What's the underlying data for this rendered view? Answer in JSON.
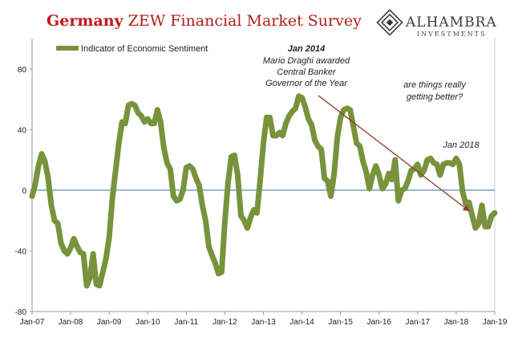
{
  "header": {
    "title_country": "Germany",
    "title_rest": " ZEW Financial Market Survey"
  },
  "logo": {
    "name": "ALHAMBRA",
    "sub": "INVESTMENTS"
  },
  "colors": {
    "series": "#77933c",
    "zero_line": "#2e6da4",
    "arrow": "#8b3a2a",
    "title": "#c41818"
  },
  "chart_data": {
    "type": "line",
    "title": "Germany ZEW Financial Market Survey",
    "xlabel": "",
    "ylabel": "",
    "ylim": [
      -80,
      100
    ],
    "yticks": [
      -80,
      -40,
      0,
      40,
      80
    ],
    "yticks_labels": [
      "-80",
      "-40",
      "0",
      "40",
      "80"
    ],
    "xlim": [
      "2007-01",
      "2019-01"
    ],
    "xticks": [
      "Jan-07",
      "Jan-08",
      "Jan-09",
      "Jan-10",
      "Jan-11",
      "Jan-12",
      "Jan-13",
      "Jan-14",
      "Jan-15",
      "Jan-16",
      "Jan-17",
      "Jan-18",
      "Jan-19"
    ],
    "grid": false,
    "legend_position": "top-left",
    "series": [
      {
        "name": "Indicator of Economic Sentiment",
        "x": [
          "2007-01",
          "2007-02",
          "2007-03",
          "2007-04",
          "2007-05",
          "2007-06",
          "2007-07",
          "2007-08",
          "2007-09",
          "2007-10",
          "2007-11",
          "2007-12",
          "2008-01",
          "2008-02",
          "2008-03",
          "2008-04",
          "2008-05",
          "2008-06",
          "2008-07",
          "2008-08",
          "2008-09",
          "2008-10",
          "2008-11",
          "2008-12",
          "2009-01",
          "2009-02",
          "2009-03",
          "2009-04",
          "2009-05",
          "2009-06",
          "2009-07",
          "2009-08",
          "2009-09",
          "2009-10",
          "2009-11",
          "2009-12",
          "2010-01",
          "2010-02",
          "2010-03",
          "2010-04",
          "2010-05",
          "2010-06",
          "2010-07",
          "2010-08",
          "2010-09",
          "2010-10",
          "2010-11",
          "2010-12",
          "2011-01",
          "2011-02",
          "2011-03",
          "2011-04",
          "2011-05",
          "2011-06",
          "2011-07",
          "2011-08",
          "2011-09",
          "2011-10",
          "2011-11",
          "2011-12",
          "2012-01",
          "2012-02",
          "2012-03",
          "2012-04",
          "2012-05",
          "2012-06",
          "2012-07",
          "2012-08",
          "2012-09",
          "2012-10",
          "2012-11",
          "2012-12",
          "2013-01",
          "2013-02",
          "2013-03",
          "2013-04",
          "2013-05",
          "2013-06",
          "2013-07",
          "2013-08",
          "2013-09",
          "2013-10",
          "2013-11",
          "2013-12",
          "2014-01",
          "2014-02",
          "2014-03",
          "2014-04",
          "2014-05",
          "2014-06",
          "2014-07",
          "2014-08",
          "2014-09",
          "2014-10",
          "2014-11",
          "2014-12",
          "2015-01",
          "2015-02",
          "2015-03",
          "2015-04",
          "2015-05",
          "2015-06",
          "2015-07",
          "2015-08",
          "2015-09",
          "2015-10",
          "2015-11",
          "2015-12",
          "2016-01",
          "2016-02",
          "2016-03",
          "2016-04",
          "2016-05",
          "2016-06",
          "2016-07",
          "2016-08",
          "2016-09",
          "2016-10",
          "2016-11",
          "2016-12",
          "2017-01",
          "2017-02",
          "2017-03",
          "2017-04",
          "2017-05",
          "2017-06",
          "2017-07",
          "2017-08",
          "2017-09",
          "2017-10",
          "2017-11",
          "2017-12",
          "2018-01",
          "2018-02",
          "2018-03",
          "2018-04",
          "2018-05",
          "2018-06",
          "2018-07",
          "2018-08",
          "2018-09",
          "2018-10",
          "2018-11",
          "2018-12",
          "2019-01"
        ],
        "y": [
          -4,
          4,
          16,
          24,
          19,
          8,
          -10,
          -20,
          -22,
          -35,
          -40,
          -42,
          -38,
          -32,
          -37,
          -41,
          -42,
          -63,
          -58,
          -42,
          -62,
          -63,
          -54,
          -45,
          -31,
          -5,
          13,
          31,
          45,
          44,
          56,
          57,
          56,
          51,
          49,
          45,
          47,
          44,
          44,
          53,
          45,
          28,
          18,
          14,
          -4,
          -7,
          -6,
          0,
          15,
          16,
          14,
          8,
          3,
          -10,
          -20,
          -37,
          -43,
          -48,
          -55,
          -54,
          -21,
          5,
          22,
          23,
          10,
          -17,
          -20,
          -25,
          -18,
          -13,
          -15,
          7,
          31,
          48,
          48,
          36,
          36,
          38,
          36,
          44,
          49,
          52,
          54,
          62,
          61,
          55,
          47,
          43,
          33,
          29,
          27,
          8,
          6,
          -4,
          11,
          35,
          48,
          53,
          54,
          53,
          42,
          31,
          29,
          19,
          12,
          1,
          10,
          16,
          10,
          1,
          4,
          11,
          7,
          20,
          -7,
          0,
          1,
          6,
          13,
          14,
          17,
          10,
          13,
          20,
          21,
          18,
          17,
          10,
          17,
          18,
          18,
          17,
          21,
          17,
          -1,
          -9,
          -8,
          -17,
          -25,
          -22,
          -10,
          -24,
          -24,
          -17,
          -15
        ]
      }
    ],
    "annotations": [
      {
        "x": "2014-01",
        "y": 62,
        "lines": [
          "Jan 2014",
          "Mario Draghi awarded",
          "Central Banker",
          "Governor of the Year"
        ]
      },
      {
        "text_lines": [
          "are things really",
          "getting better?"
        ]
      },
      {
        "x": "2018-01",
        "y": 21,
        "text": "Jan 2018"
      }
    ]
  },
  "labels": {
    "legend": "Indicator of Economic Sentiment",
    "ann_jan2014": "Jan 2014",
    "ann_draghi": "Mario Draghi awarded",
    "ann_cb": "Central Banker",
    "ann_gov": "Governor of the Year",
    "ann_q1": "are things really",
    "ann_q2": "getting better?",
    "ann_jan2018": "Jan 2018"
  }
}
